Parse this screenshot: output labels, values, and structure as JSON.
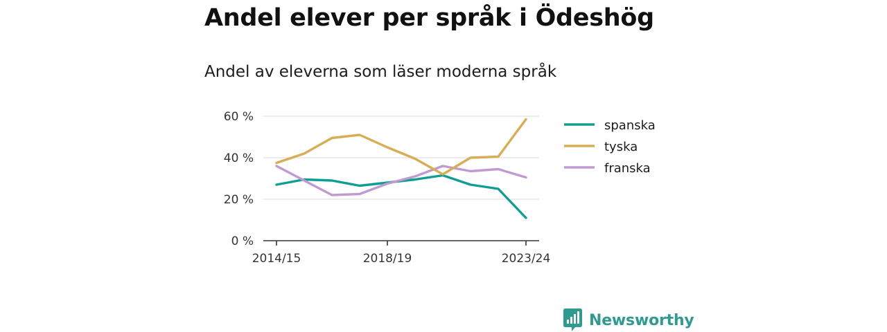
{
  "title": "Andel elever per språk i Ödeshög",
  "subtitle": "Andel av eleverna som läser moderna språk",
  "brand": {
    "name": "Newsworthy",
    "color": "#2f9a8f",
    "icon": "bar-chart-speech-bubble-icon"
  },
  "chart_data": {
    "type": "line",
    "x": [
      "2014/15",
      "2015/16",
      "2016/17",
      "2017/18",
      "2018/19",
      "2019/20",
      "2020/21",
      "2021/22",
      "2022/23",
      "2023/24"
    ],
    "x_tick_labels": [
      "2014/15",
      "2018/19",
      "2023/24"
    ],
    "y_ticks": [
      0,
      20,
      40,
      60
    ],
    "y_tick_labels": [
      "0 %",
      "20 %",
      "40 %",
      "60 %"
    ],
    "ylim": [
      0,
      60
    ],
    "grid": true,
    "legend_position": "right",
    "series": [
      {
        "name": "spanska",
        "color": "#0e9e92",
        "values": [
          27,
          29.5,
          29,
          26.5,
          28,
          29.5,
          31.5,
          27,
          25,
          11
        ]
      },
      {
        "name": "tyska",
        "color": "#d8ad56",
        "values": [
          37.5,
          42,
          49.5,
          51,
          45,
          39.5,
          32,
          40,
          40.5,
          58.5
        ]
      },
      {
        "name": "franska",
        "color": "#c29ad2",
        "values": [
          36,
          29,
          22,
          22.5,
          27.5,
          31,
          36,
          33.5,
          34.5,
          30.5
        ]
      }
    ]
  }
}
